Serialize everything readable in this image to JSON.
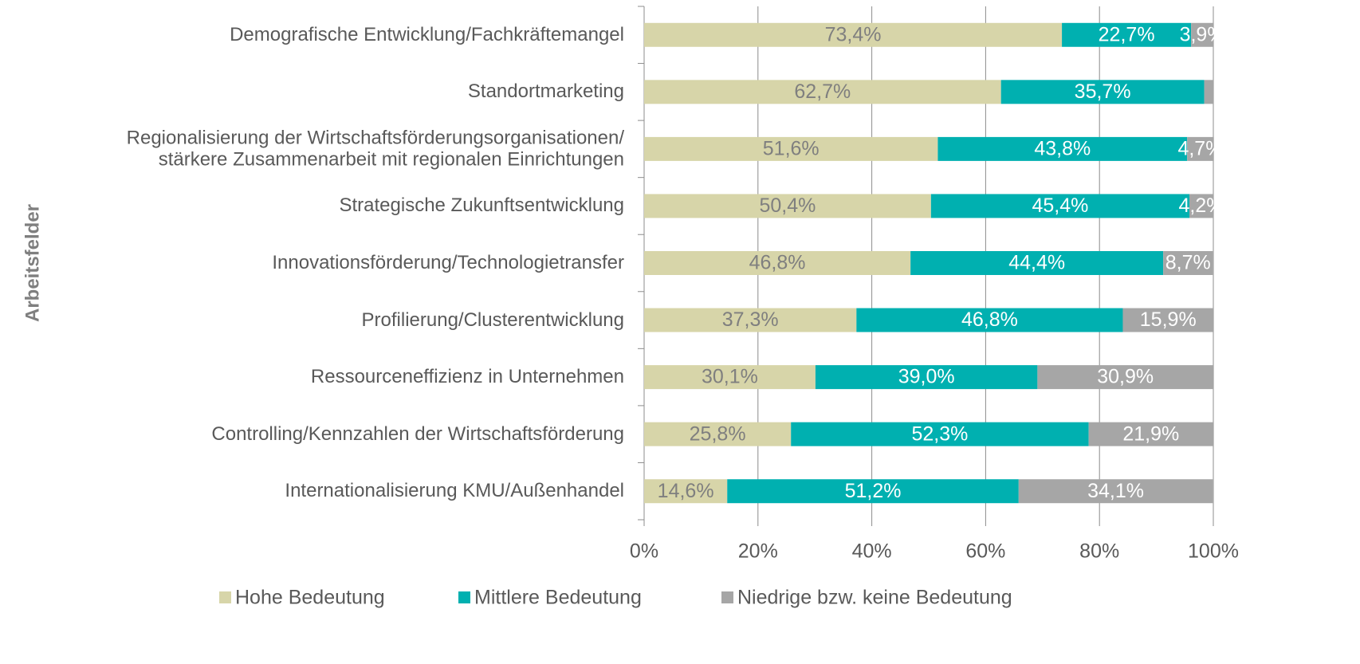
{
  "chart_data": {
    "type": "stacked_barh",
    "y_label": "Arbeitsfelder",
    "categories": [
      "Demografische Entwicklung/Fachkräftemangel",
      "Standortmarketing",
      "Regionalisierung der Wirtschaftsförderungsorganisationen/\nstärkere Zusammenarbeit mit regionalen Einrichtungen",
      "Strategische Zukunftsentwicklung",
      "Innovationsförderung/Technologietransfer",
      "Profilierung/Clusterentwicklung",
      "Ressourceneffizienz in Unternehmen",
      "Controlling/Kennzahlen der Wirtschaftsförderung",
      "Internationalisierung KMU/Außenhandel"
    ],
    "series": [
      {
        "name": "Hohe Bedeutung",
        "color": "#d7d5a9",
        "label_color": "#7f7f7f",
        "values": [
          73.4,
          62.7,
          51.6,
          50.4,
          46.8,
          37.3,
          30.1,
          25.8,
          14.6
        ],
        "value_labels": [
          "73,4%",
          "62,7%",
          "51,6%",
          "50,4%",
          "46,8%",
          "37,3%",
          "30,1%",
          "25,8%",
          "14,6%"
        ]
      },
      {
        "name": "Mittlere Bedeutung",
        "color": "#00b0b0",
        "label_color": "#ffffff",
        "values": [
          22.7,
          35.7,
          43.8,
          45.4,
          44.4,
          46.8,
          39.0,
          52.3,
          51.2
        ],
        "value_labels": [
          "22,7%",
          "35,7%",
          "43,8%",
          "45,4%",
          "44,4%",
          "46,8%",
          "39,0%",
          "52,3%",
          "51,2%"
        ]
      },
      {
        "name": "Niedrige bzw. keine Bedeutung",
        "color": "#a6a6a6",
        "label_color": "#ffffff",
        "values": [
          3.9,
          1.6,
          4.7,
          4.2,
          8.7,
          15.9,
          30.9,
          21.9,
          34.1
        ],
        "value_labels": [
          "3,9%",
          null,
          "4,7%",
          "4,2%",
          "8,7%",
          "15,9%",
          "30,9%",
          "21,9%",
          "34,1%"
        ]
      }
    ],
    "xlim": [
      0,
      100
    ],
    "xticks": [
      {
        "value": 0,
        "label": "0%"
      },
      {
        "value": 20,
        "label": "20%"
      },
      {
        "value": 40,
        "label": "40%"
      },
      {
        "value": 60,
        "label": "60%"
      },
      {
        "value": 80,
        "label": "80%"
      },
      {
        "value": 100,
        "label": "100%"
      }
    ],
    "grid": true,
    "legend": "bottom"
  }
}
